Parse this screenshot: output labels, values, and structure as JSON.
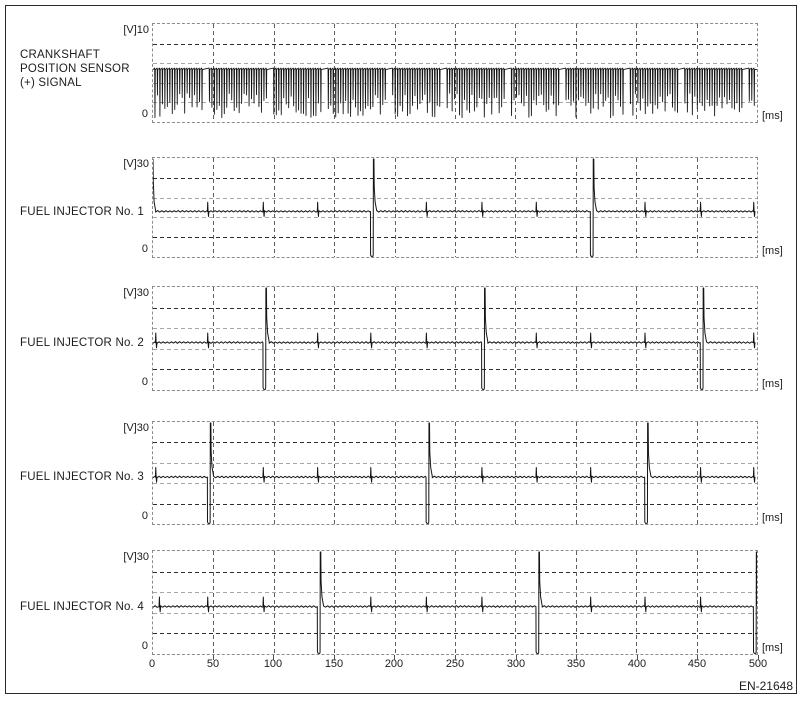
{
  "figure": {
    "code": "EN-21648"
  },
  "x_axis": {
    "unit": "[ms]",
    "ticks": [
      "0",
      "50",
      "100",
      "150",
      "200",
      "250",
      "300",
      "350",
      "400",
      "450",
      "500"
    ]
  },
  "charts": [
    {
      "name": "crankshaft-position-sensor-signal",
      "label_lines": [
        "CRANKSHAFT",
        "POSITION SENSOR",
        "(+) SIGNAL"
      ],
      "y_top": "[V]10",
      "y_zero": "0",
      "x_unit": "[ms]"
    },
    {
      "name": "fuel-injector-1",
      "label_lines": [
        "FUEL INJECTOR No. 1"
      ],
      "y_top": "[V]30",
      "y_zero": "0",
      "x_unit": "[ms]"
    },
    {
      "name": "fuel-injector-2",
      "label_lines": [
        "FUEL INJECTOR No. 2"
      ],
      "y_top": "[V]30",
      "y_zero": "0",
      "x_unit": "[ms]"
    },
    {
      "name": "fuel-injector-3",
      "label_lines": [
        "FUEL INJECTOR No. 3"
      ],
      "y_top": "[V]30",
      "y_zero": "0",
      "x_unit": "[ms]"
    },
    {
      "name": "fuel-injector-4",
      "label_lines": [
        "FUEL INJECTOR No. 4"
      ],
      "y_top": "[V]30",
      "y_zero": "0",
      "x_unit": "[ms]"
    }
  ],
  "chart_data": [
    {
      "type": "line",
      "title": "CRANKSHAFT POSITION SENSOR (+) SIGNAL",
      "xlabel": "[ms]",
      "ylabel": "[V]",
      "xlim": [
        0,
        500
      ],
      "ylim": [
        0,
        10
      ],
      "grid_interval_ms": 50,
      "baseline_v": 5.35,
      "tooth_period_ms": 2.05,
      "tooth_low_v_min": 0.45,
      "tooth_low_v_max": 2.95,
      "teeth_cycle": 48,
      "missing_tooth_positions": [
        20,
        21,
        46,
        47
      ]
    },
    {
      "type": "line",
      "title": "FUEL INJECTOR No. 1",
      "xlabel": "[ms]",
      "ylabel": "[V]",
      "xlim": [
        0,
        500
      ],
      "ylim": [
        0,
        30
      ],
      "grid_interval_ms": 50,
      "baseline_v": 13.8,
      "fire_times_ms": [
        180,
        362
      ],
      "blip_times_ms": [
        45,
        91,
        136,
        226,
        272,
        317,
        407,
        453,
        497
      ],
      "injection_pulse_ms": 2.3,
      "injection_low_v": 0.2,
      "flyback_peak_v": 30,
      "start_decay_v": 29.7
    },
    {
      "type": "line",
      "title": "FUEL INJECTOR No. 2",
      "xlabel": "[ms]",
      "ylabel": "[V]",
      "xlim": [
        0,
        500
      ],
      "ylim": [
        0,
        30
      ],
      "grid_interval_ms": 50,
      "baseline_v": 13.8,
      "fire_times_ms": [
        91,
        272,
        453
      ],
      "blip_times_ms": [
        2,
        45,
        136,
        180,
        226,
        317,
        362,
        407,
        497
      ],
      "injection_pulse_ms": 2.3,
      "injection_low_v": 0.2,
      "flyback_peak_v": 30
    },
    {
      "type": "line",
      "title": "FUEL INJECTOR No. 3",
      "xlabel": "[ms]",
      "ylabel": "[V]",
      "xlim": [
        0,
        500
      ],
      "ylim": [
        0,
        30
      ],
      "grid_interval_ms": 50,
      "baseline_v": 13.8,
      "fire_times_ms": [
        45,
        226,
        407
      ],
      "blip_times_ms": [
        2,
        91,
        136,
        180,
        272,
        317,
        362,
        453,
        497
      ],
      "injection_pulse_ms": 2.3,
      "injection_low_v": 0.2,
      "flyback_peak_v": 30
    },
    {
      "type": "line",
      "title": "FUEL INJECTOR No. 4",
      "xlabel": "[ms]",
      "ylabel": "[V]",
      "xlim": [
        0,
        500
      ],
      "ylim": [
        0,
        30
      ],
      "grid_interval_ms": 50,
      "baseline_v": 13.8,
      "fire_times_ms": [
        136,
        317,
        497
      ],
      "blip_times_ms": [
        5,
        45,
        91,
        180,
        226,
        272,
        362,
        407,
        453
      ],
      "injection_pulse_ms": 2.3,
      "injection_low_v": 0.2,
      "flyback_peak_v": 30
    }
  ]
}
